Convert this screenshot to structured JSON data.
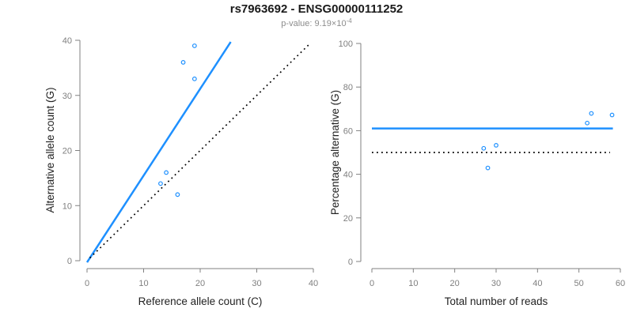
{
  "header": {
    "title": "rs7963692 - ENSG00000111252",
    "subtitle_prefix": "p-value: 9.19×10",
    "subtitle_exponent": "-4"
  },
  "colors": {
    "accent_blue": "#1E90FF",
    "axis_gray": "#808080",
    "tick_label_gray": "#7f7f7f",
    "axis_title_black": "#222222",
    "title_black": "#1a1a1a",
    "background": "#ffffff"
  },
  "chart_data": [
    {
      "type": "scatter",
      "title": "",
      "xlabel": "Reference allele count (C)",
      "ylabel": "Alternative allele count (G)",
      "xlim": [
        0,
        40
      ],
      "ylim": [
        0,
        40
      ],
      "xticks": [
        0,
        10,
        20,
        30,
        40
      ],
      "yticks": [
        0,
        10,
        20,
        30,
        40
      ],
      "grid": false,
      "legend": false,
      "point_color": "#1E90FF",
      "points": [
        [
          19,
          39
        ],
        [
          17,
          36
        ],
        [
          19,
          33
        ],
        [
          14,
          16
        ],
        [
          13,
          14
        ],
        [
          16,
          12
        ]
      ],
      "lines": [
        {
          "name": "fitted-proportion-line",
          "style": "solid",
          "color": "#1E90FF",
          "width": 2.5,
          "from": [
            0,
            -0.3
          ],
          "to": [
            25.4,
            39.7
          ]
        },
        {
          "name": "identity-line",
          "style": "dotted",
          "color": "#000000",
          "width": 1.7,
          "from": [
            0.5,
            0.5
          ],
          "to": [
            39.3,
            39.3
          ]
        }
      ]
    },
    {
      "type": "scatter",
      "title": "",
      "xlabel": "Total number of reads",
      "ylabel": "Percentage alternative (G)",
      "xlim": [
        0,
        60
      ],
      "ylim": [
        0,
        100
      ],
      "xticks": [
        0,
        10,
        20,
        30,
        40,
        50,
        60
      ],
      "yticks": [
        0,
        20,
        40,
        60,
        80,
        100
      ],
      "grid": false,
      "legend": false,
      "point_color": "#1E90FF",
      "points": [
        [
          58,
          67.2
        ],
        [
          53,
          67.9
        ],
        [
          52,
          63.5
        ],
        [
          30,
          53.3
        ],
        [
          27,
          51.9
        ],
        [
          28,
          42.9
        ]
      ],
      "lines": [
        {
          "name": "mean-percentage-line",
          "style": "solid",
          "color": "#1E90FF",
          "width": 2.5,
          "from": [
            0,
            61
          ],
          "to": [
            58.2,
            61
          ]
        },
        {
          "name": "null-percentage-line",
          "style": "dotted",
          "color": "#000000",
          "width": 1.7,
          "from": [
            0,
            50
          ],
          "to": [
            57.5,
            50
          ]
        }
      ]
    }
  ]
}
